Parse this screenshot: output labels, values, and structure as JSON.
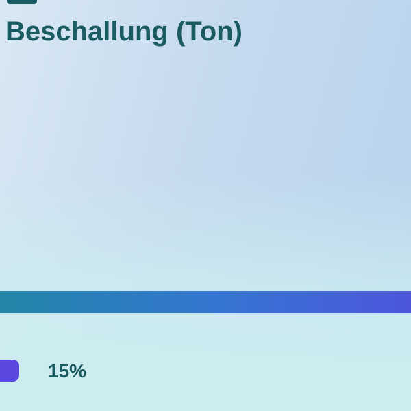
{
  "chart_data": {
    "type": "bar",
    "orientation": "horizontal",
    "title": "Beschallung (Ton)",
    "categories": [
      "Beschallung (Ton)"
    ],
    "values": [
      15
    ],
    "value_labels": [
      "15%"
    ],
    "legend_position": "bottom-left",
    "bar_full_width": true,
    "notes": "Single poll-result style bar spanning full viewport width; percentage shown as legend label, not bar length"
  },
  "title": "Beschallung (Ton)",
  "legend": {
    "value_label": "15%",
    "swatch_color": "#5A48E0"
  },
  "colors": {
    "title_text": "#1A5A61",
    "bar_gradient_start": "#2385A7",
    "bar_gradient_mid": "#3476D1",
    "bar_gradient_end": "#4D56DD",
    "legend_swatch": "#5A48E0",
    "top_mark": "#175C62",
    "bg_top_left": "#D8E7F3",
    "bg_top_right": "#B7D2EC",
    "bg_bottom": "#CDEDF0"
  }
}
